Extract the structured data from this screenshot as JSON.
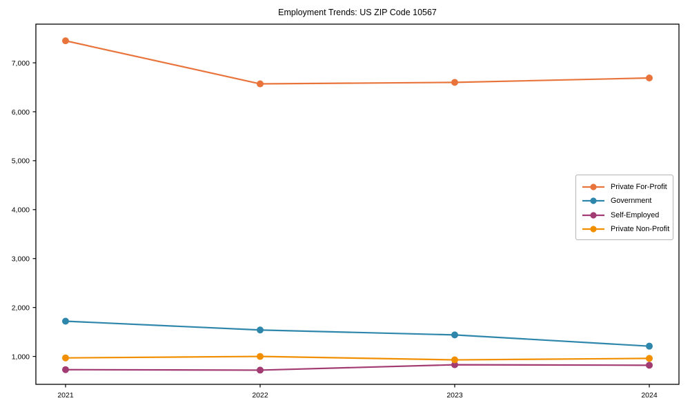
{
  "title": "Employment Trends: US ZIP Code 10567",
  "chart_data": {
    "type": "line",
    "title": "Employment Trends: US ZIP Code 10567",
    "xlabel": "",
    "ylabel": "",
    "x": [
      2021,
      2022,
      2023,
      2024
    ],
    "x_tick_labels": [
      "2021",
      "2022",
      "2023",
      "2024"
    ],
    "yticks": [
      1000,
      2000,
      3000,
      4000,
      5000,
      6000,
      7000
    ],
    "ytick_labels": [
      "1,000",
      "2,000",
      "3,000",
      "4,000",
      "5,000",
      "6,000",
      "7,000"
    ],
    "ylim": [
      430,
      7790
    ],
    "grid": false,
    "legend_position": "center-right",
    "series": [
      {
        "name": "Private For-Profit",
        "color": "#E8743B",
        "values": [
          7450,
          6570,
          6600,
          6690
        ]
      },
      {
        "name": "Government",
        "color": "#2E86AB",
        "values": [
          1720,
          1540,
          1440,
          1210
        ]
      },
      {
        "name": "Self-Employed",
        "color": "#A23B72",
        "values": [
          730,
          720,
          830,
          820
        ]
      },
      {
        "name": "Private Non-Profit",
        "color": "#F18F01",
        "values": [
          970,
          1000,
          930,
          960
        ]
      }
    ]
  }
}
